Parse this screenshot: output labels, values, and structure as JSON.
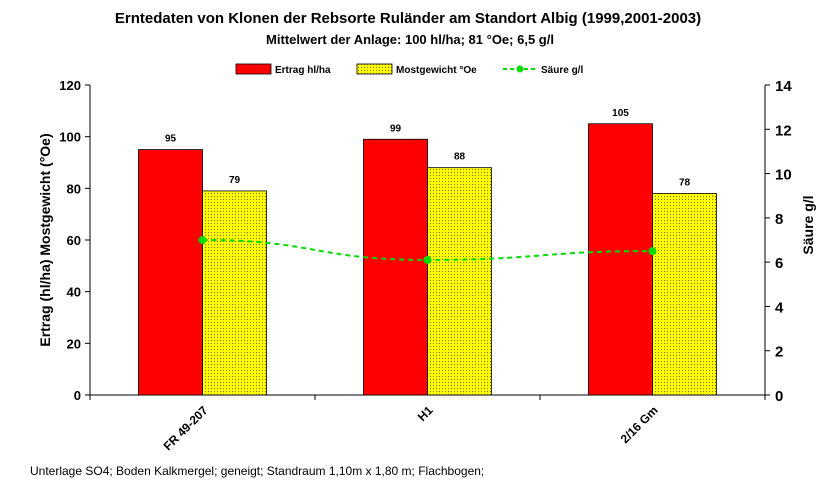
{
  "chart_data": {
    "type": "bar",
    "title": "Erntedaten von Klonen der Rebsorte Ruländer am Standort Albig (1999,2001-2003)",
    "subtitle": "Mittelwert der Anlage: 100 hl/ha; 81 °Oe; 6,5 g/l",
    "footnote": "Unterlage SO4;  Boden Kalkmergel;  geneigt; Standraum 1,10m x 1,80 m; Flachbogen;",
    "categories": [
      "FR 49-207",
      "H1",
      "2/16 Gm"
    ],
    "ylabel": "Ertrag (hl/ha)  Mostgewicht (°Oe)",
    "y2label": "Säure g/l",
    "ylim": [
      0,
      120
    ],
    "yticks": [
      "0",
      "20",
      "40",
      "60",
      "80",
      "100",
      "120"
    ],
    "y2lim": [
      0,
      14
    ],
    "y2ticks": [
      "0",
      "2",
      "4",
      "6",
      "8",
      "10",
      "12",
      "14"
    ],
    "legend_position": "top",
    "grid": false,
    "series": [
      {
        "name": "Ertrag hl/ha",
        "type": "bar",
        "axis": "left",
        "color": "#ff0000",
        "values": [
          95,
          99,
          105
        ],
        "labels": [
          "95",
          "99",
          "105"
        ]
      },
      {
        "name": "Mostgewicht °Oe",
        "type": "bar",
        "axis": "left",
        "color": "#ffff00",
        "pattern": "dotted",
        "values": [
          79,
          88,
          78
        ],
        "labels": [
          "79",
          "88",
          "78"
        ]
      },
      {
        "name": "Säure g/l",
        "type": "line",
        "axis": "right",
        "color": "#00dd00",
        "dashed": true,
        "values": [
          7.0,
          6.1,
          6.5
        ]
      }
    ]
  }
}
